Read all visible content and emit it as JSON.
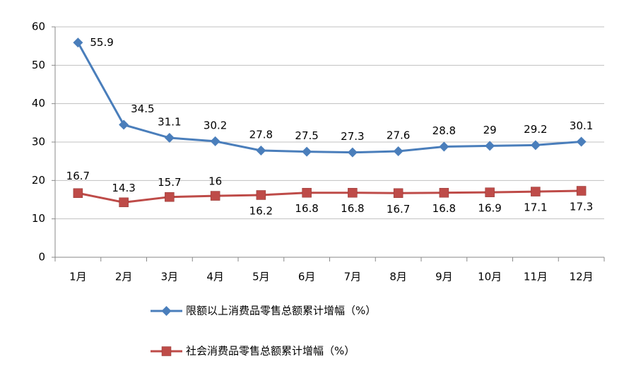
{
  "chart_data": {
    "type": "line",
    "categories": [
      "1月",
      "2月",
      "3月",
      "4月",
      "5月",
      "6月",
      "7月",
      "8月",
      "9月",
      "10月",
      "11月",
      "12月"
    ],
    "series": [
      {
        "name": "限额以上消费品零售总额累计增幅（%）",
        "color": "#4a7ebb",
        "marker": "diamond",
        "values": [
          55.9,
          34.5,
          31.1,
          30.2,
          27.8,
          27.5,
          27.3,
          27.6,
          28.8,
          29,
          29.2,
          30.1
        ]
      },
      {
        "name": "社会消费品零售总额累计增幅（%）",
        "color": "#be4b48",
        "marker": "square",
        "values": [
          16.7,
          14.3,
          15.7,
          16,
          16.2,
          16.8,
          16.8,
          16.7,
          16.8,
          16.9,
          17.1,
          17.3
        ]
      }
    ],
    "ylim": [
      0,
      60
    ],
    "yticks": [
      0,
      10,
      20,
      30,
      40,
      50,
      60
    ],
    "grid": true
  }
}
